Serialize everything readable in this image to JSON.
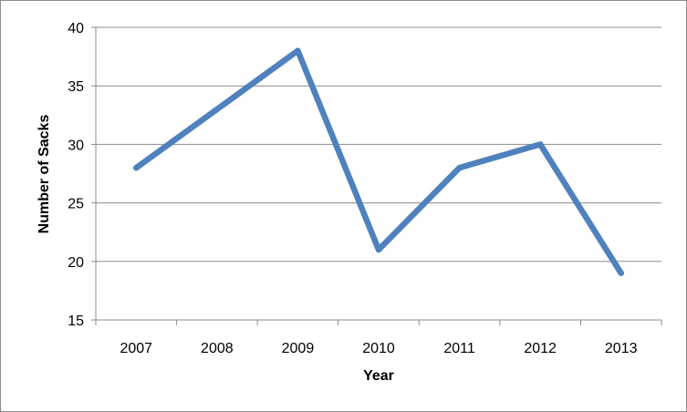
{
  "chart_data": {
    "type": "line",
    "title": "",
    "xlabel": "Year",
    "ylabel": "Number of Sacks",
    "categories": [
      "2007",
      "2008",
      "2009",
      "2010",
      "2011",
      "2012",
      "2013"
    ],
    "series": [
      {
        "values": [
          28,
          33,
          38,
          21,
          28,
          30,
          19
        ],
        "color": "#4f81bd"
      }
    ],
    "ylim": [
      15,
      40
    ],
    "yticks": [
      15,
      20,
      25,
      30,
      35,
      40
    ],
    "grid": "horizontal",
    "legend": "none"
  }
}
